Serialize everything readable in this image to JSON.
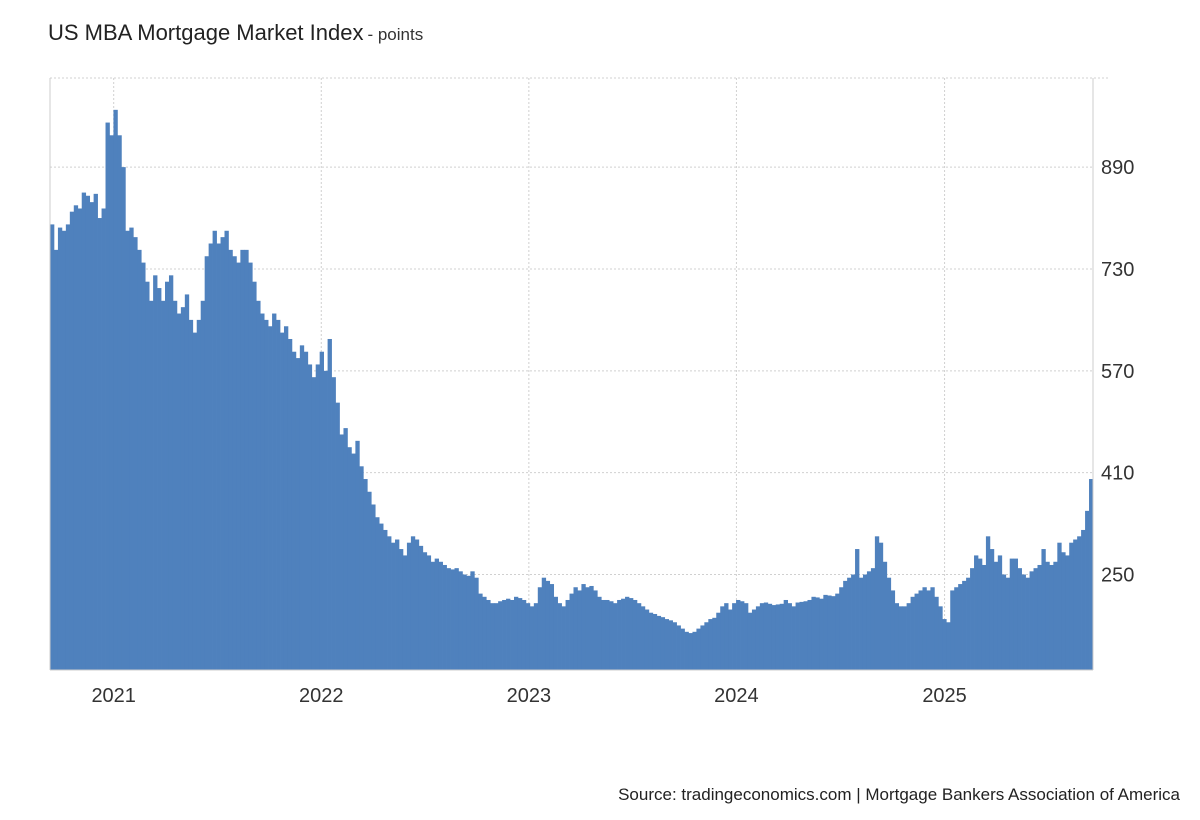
{
  "title": "US MBA Mortgage Market Index",
  "unit": "- points",
  "source": "Source: tradingeconomics.com | Mortgage Bankers Association of America",
  "colors": {
    "bar": "#4f81bd",
    "grid": "#d0d0d0",
    "axis": "#cccccc"
  },
  "chart_data": {
    "type": "bar",
    "title": "US MBA Mortgage Market Index",
    "ylabel": "",
    "xlabel": "",
    "ylim": [
      100,
      1030
    ],
    "yticks": [
      250,
      410,
      570,
      730,
      890
    ],
    "xticks": [
      "2021",
      "2022",
      "2023",
      "2024",
      "2025"
    ],
    "grid": true,
    "x_start": "2020-09-11",
    "x_end": "2025-09-19",
    "series": [
      {
        "values": [
          800,
          760,
          795,
          790,
          800,
          820,
          830,
          825,
          850,
          845,
          835,
          848,
          810,
          825,
          960,
          940,
          980,
          940,
          890,
          790,
          795,
          780,
          760,
          740,
          710,
          680,
          720,
          700,
          680,
          710,
          720,
          680,
          660,
          670,
          690,
          650,
          630,
          650,
          680,
          750,
          770,
          790,
          770,
          780,
          790,
          760,
          750,
          740,
          760,
          760,
          740,
          710,
          680,
          660,
          650,
          640,
          660,
          650,
          630,
          640,
          620,
          600,
          590,
          610,
          600,
          580,
          560,
          580,
          600,
          570,
          620,
          560,
          520,
          470,
          480,
          450,
          440,
          460,
          420,
          400,
          380,
          360,
          340,
          330,
          320,
          310,
          300,
          305,
          290,
          280,
          300,
          310,
          305,
          295,
          285,
          280,
          270,
          275,
          270,
          265,
          260,
          258,
          260,
          255,
          250,
          248,
          255,
          245,
          220,
          215,
          210,
          205,
          205,
          208,
          210,
          212,
          210,
          215,
          213,
          210,
          205,
          200,
          205,
          230,
          245,
          240,
          235,
          215,
          205,
          200,
          210,
          220,
          230,
          225,
          235,
          230,
          232,
          225,
          215,
          210,
          210,
          208,
          205,
          210,
          212,
          215,
          213,
          210,
          205,
          200,
          195,
          190,
          188,
          185,
          183,
          180,
          178,
          175,
          170,
          165,
          160,
          158,
          160,
          165,
          170,
          175,
          180,
          182,
          190,
          200,
          205,
          195,
          205,
          210,
          208,
          205,
          190,
          195,
          200,
          205,
          206,
          204,
          202,
          203,
          204,
          210,
          205,
          200,
          206,
          207,
          208,
          210,
          215,
          214,
          212,
          218,
          217,
          216,
          220,
          230,
          240,
          245,
          250,
          290,
          245,
          250,
          255,
          260,
          310,
          300,
          270,
          245,
          225,
          205,
          200,
          200,
          205,
          215,
          220,
          225,
          230,
          225,
          230,
          215,
          200,
          180,
          175,
          225,
          230,
          235,
          240,
          245,
          260,
          280,
          275,
          265,
          310,
          290,
          270,
          280,
          250,
          245,
          275,
          275,
          260,
          250,
          245,
          255,
          260,
          265,
          290,
          270,
          265,
          270,
          300,
          285,
          280,
          300,
          305,
          310,
          320,
          350,
          400
        ]
      }
    ]
  }
}
